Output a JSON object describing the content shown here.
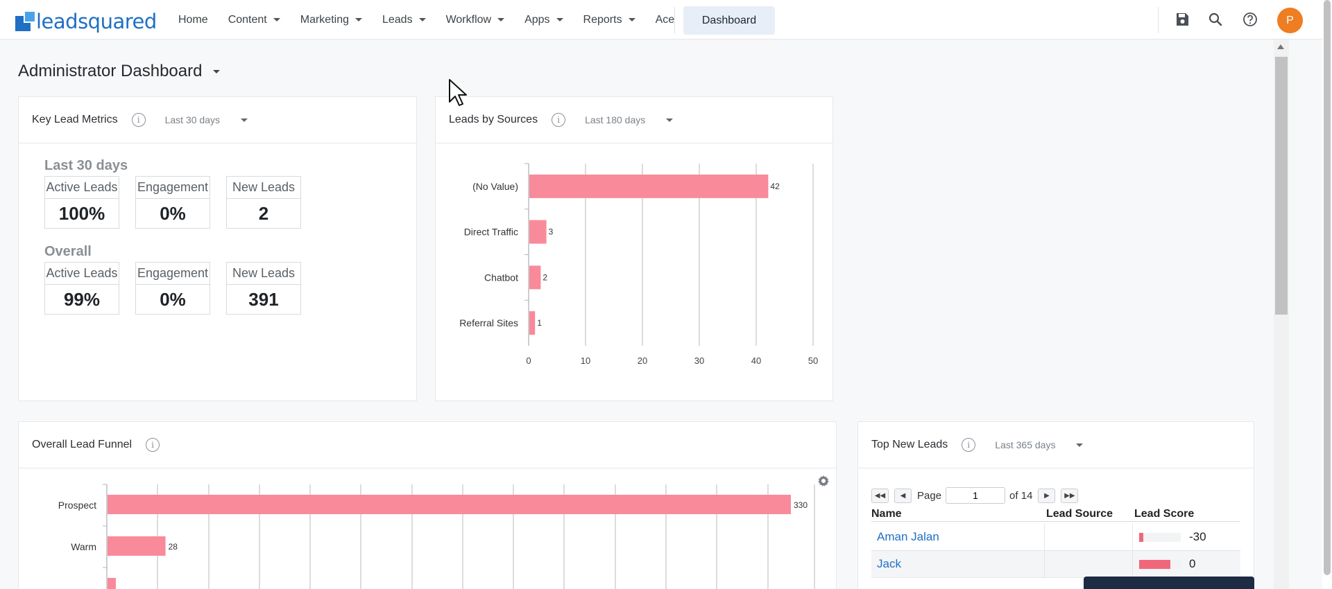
{
  "brand": {
    "logo_text": "leadsquared",
    "accent": "#1f6fc5"
  },
  "nav": {
    "items": [
      {
        "label": "Home",
        "caret": false
      },
      {
        "label": "Content",
        "caret": true
      },
      {
        "label": "Marketing",
        "caret": true
      },
      {
        "label": "Leads",
        "caret": true
      },
      {
        "label": "Workflow",
        "caret": true
      },
      {
        "label": "Apps",
        "caret": true
      },
      {
        "label": "Reports",
        "caret": true
      },
      {
        "label": "Ace",
        "caret": false
      }
    ],
    "active_button": "Dashboard",
    "icons": [
      "save-icon",
      "search-icon",
      "help-icon"
    ],
    "avatar_initial": "P"
  },
  "page": {
    "title": "Administrator Dashboard"
  },
  "key_metrics": {
    "title": "Key Lead Metrics",
    "range": "Last 30 days",
    "sections": [
      {
        "heading": "Last 30 days",
        "metrics": [
          {
            "label": "Active Leads",
            "value": "100%"
          },
          {
            "label": "Engagement",
            "value": "0%"
          },
          {
            "label": "New Leads",
            "value": "2"
          }
        ]
      },
      {
        "heading": "Overall",
        "metrics": [
          {
            "label": "Active Leads",
            "value": "99%"
          },
          {
            "label": "Engagement",
            "value": "0%"
          },
          {
            "label": "New Leads",
            "value": "391"
          }
        ]
      }
    ]
  },
  "leads_by_sources": {
    "title": "Leads by Sources",
    "range": "Last 180 days"
  },
  "funnel": {
    "title": "Overall Lead Funnel"
  },
  "top_new_leads": {
    "title": "Top New Leads",
    "range": "Last 365 days",
    "pager": {
      "label": "Page",
      "current": "1",
      "of_text": "of 14"
    },
    "columns": [
      "Name",
      "Lead Source",
      "Lead Score"
    ],
    "rows": [
      {
        "name": "Aman Jalan",
        "source": "",
        "score": "-30",
        "score_fraction": 0.1
      },
      {
        "name": "Jack",
        "source": "",
        "score": "0",
        "score_fraction": 0.75
      }
    ]
  },
  "chart_data": [
    {
      "type": "bar",
      "orientation": "horizontal",
      "title": "Leads by Sources",
      "categories": [
        "(No Value)",
        "Direct Traffic",
        "Chatbot",
        "Referral Sites"
      ],
      "values": [
        42,
        3,
        2,
        1
      ],
      "xlim": [
        0,
        50
      ],
      "xticks": [
        0,
        10,
        20,
        30,
        40,
        50
      ],
      "grid": true,
      "bar_color": "#f88a9a",
      "data_labels": true
    },
    {
      "type": "bar",
      "orientation": "horizontal",
      "title": "Overall Lead Funnel",
      "categories": [
        "Prospect",
        "Warm",
        ""
      ],
      "values": [
        330,
        28,
        4
      ],
      "grid": true,
      "bar_color": "#f88a9a",
      "data_labels": true
    }
  ]
}
